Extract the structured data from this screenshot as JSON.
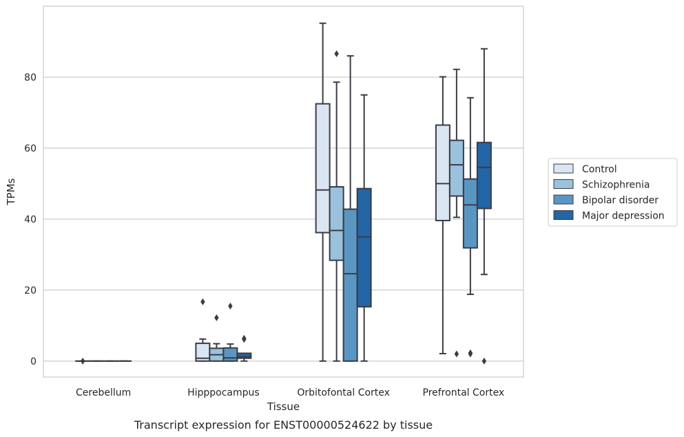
{
  "caption": "Transcript expression for ENST00000524622 by tissue",
  "chart_data": {
    "type": "box",
    "xlabel": "Tissue",
    "ylabel": "TPMs",
    "ylim": [
      -4.5,
      100
    ],
    "yticks": [
      0,
      20,
      40,
      60,
      80
    ],
    "grid": "horizontal",
    "legend_position": "right",
    "categories": [
      "Cerebellum",
      "Hipppocampus",
      "Orbitofontal Cortex",
      "Prefrontal Cortex"
    ],
    "series": [
      {
        "name": "Control",
        "color": "#dae6f2",
        "boxes": [
          {
            "min": 0,
            "q1": 0,
            "median": 0,
            "q3": 0,
            "max": 0,
            "outliers": [
              0
            ]
          },
          {
            "min": 0,
            "q1": 0,
            "median": 0.8,
            "q3": 5,
            "max": 6.2,
            "outliers": [
              16.7
            ]
          },
          {
            "min": 0,
            "q1": 36.2,
            "median": 48.2,
            "q3": 72.5,
            "max": 95.2,
            "outliers": []
          },
          {
            "min": 2.1,
            "q1": 39.6,
            "median": 50,
            "q3": 66.5,
            "max": 80.1,
            "outliers": []
          }
        ]
      },
      {
        "name": "Schizophrenia",
        "color": "#9ac2dc",
        "boxes": [
          {
            "min": 0,
            "q1": 0,
            "median": 0,
            "q3": 0,
            "max": 0,
            "outliers": []
          },
          {
            "min": 0,
            "q1": 0,
            "median": 1.8,
            "q3": 3.6,
            "max": 4.9,
            "outliers": [
              12.2
            ]
          },
          {
            "min": 0,
            "q1": 28.4,
            "median": 36.8,
            "q3": 49.1,
            "max": 78.6,
            "outliers": [
              86.6
            ]
          },
          {
            "min": 40.5,
            "q1": 46.5,
            "median": 55.3,
            "q3": 62.2,
            "max": 82.2,
            "outliers": [
              2
            ]
          }
        ]
      },
      {
        "name": "Bipolar disorder",
        "color": "#5a96c4",
        "boxes": [
          {
            "min": 0,
            "q1": 0,
            "median": 0,
            "q3": 0,
            "max": 0,
            "outliers": []
          },
          {
            "min": 0,
            "q1": 0,
            "median": 0.9,
            "q3": 3.7,
            "max": 4.8,
            "outliers": [
              15.5
            ]
          },
          {
            "min": 0,
            "q1": 0,
            "median": 24.6,
            "q3": 42.8,
            "max": 86,
            "outliers": []
          },
          {
            "min": 18.8,
            "q1": 31.9,
            "median": 44,
            "q3": 51.3,
            "max": 74.2,
            "outliers": [
              2.3,
              2
            ]
          }
        ]
      },
      {
        "name": "Major depression",
        "color": "#2465a5",
        "boxes": [
          {
            "min": 0,
            "q1": 0,
            "median": 0,
            "q3": 0,
            "max": 0,
            "outliers": []
          },
          {
            "min": 0,
            "q1": 0.8,
            "median": 1.2,
            "q3": 2.2,
            "max": 2.2,
            "outliers": [
              6.1,
              6.4
            ]
          },
          {
            "min": 0,
            "q1": 15.3,
            "median": 35,
            "q3": 48.6,
            "max": 75,
            "outliers": []
          },
          {
            "min": 24.4,
            "q1": 43,
            "median": 54.6,
            "q3": 61.6,
            "max": 88,
            "outliers": [
              0
            ]
          }
        ]
      }
    ]
  }
}
